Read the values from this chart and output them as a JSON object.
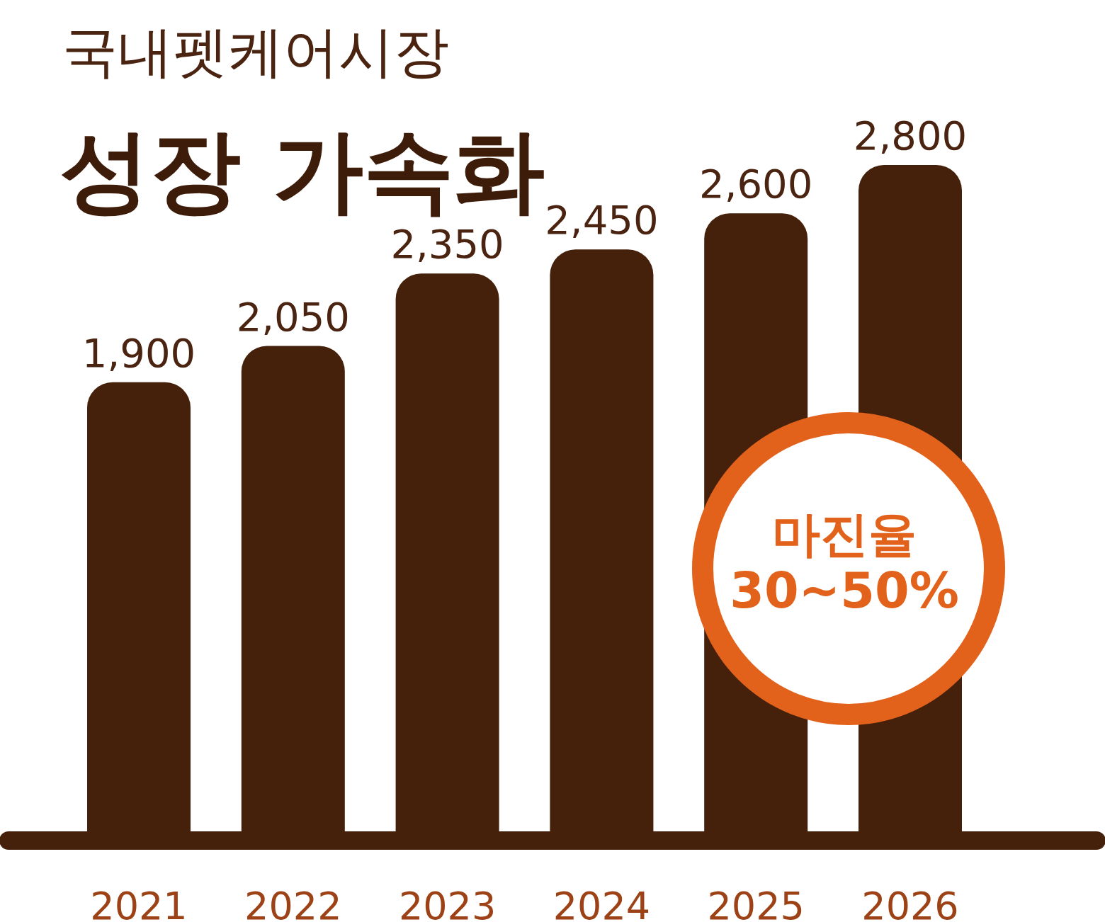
{
  "chart_data": {
    "type": "bar",
    "title": "국내펫케어시장",
    "subtitle": "성장 가속화",
    "categories": [
      "2021",
      "2022",
      "2023",
      "2024",
      "2025",
      "2026"
    ],
    "values": [
      1900,
      2050,
      2350,
      2450,
      2600,
      2800
    ],
    "value_labels": [
      "1,900",
      "2,050",
      "2,350",
      "2,450",
      "2,600",
      "2,800"
    ],
    "color": "#45200b",
    "annotations": [
      "마진율",
      "30~50%"
    ]
  }
}
